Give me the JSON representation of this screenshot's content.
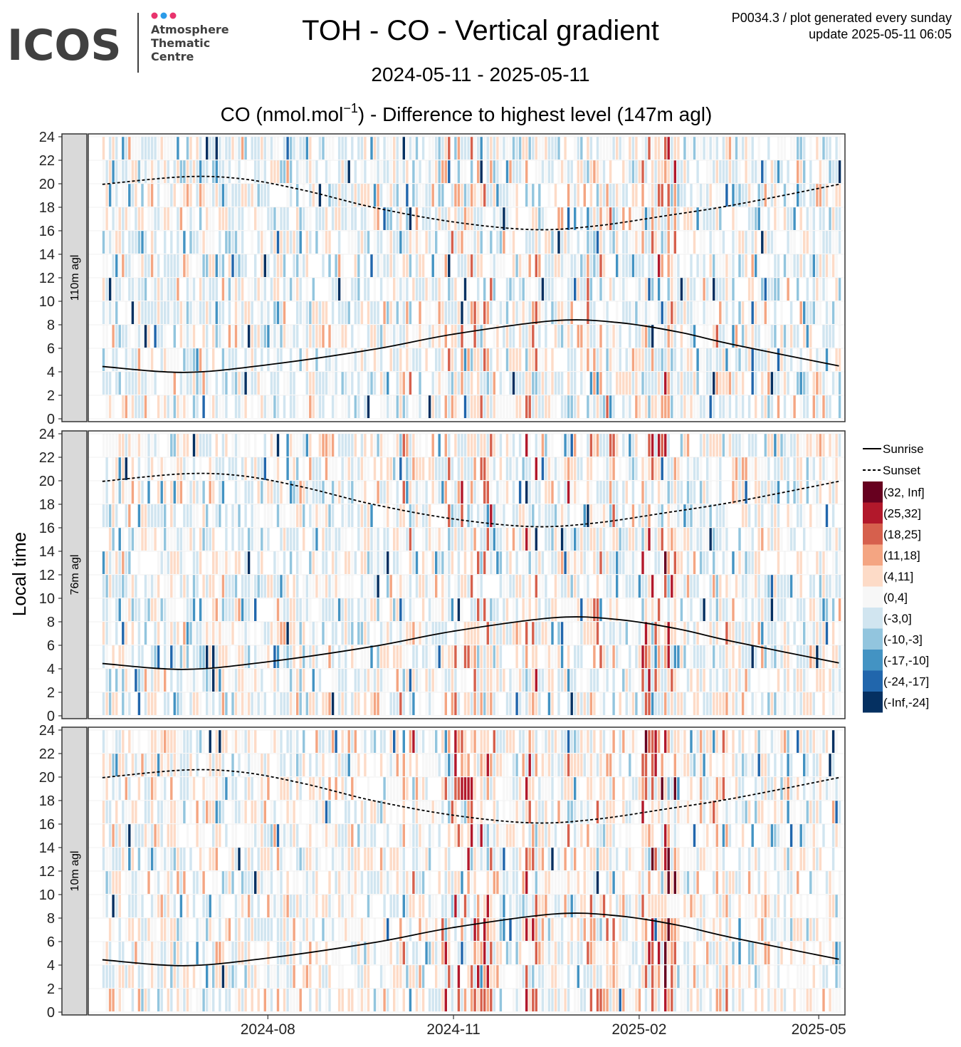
{
  "logo": {
    "wordmark": "ICOS",
    "line1": "Atmosphere",
    "line2": "Thematic",
    "line3": "Centre",
    "dot_colors": [
      "#e8336d",
      "#2b9be8",
      "#e8336d"
    ],
    "wordmark_color": "#404040"
  },
  "header": {
    "title": "TOH - CO - Vertical gradient",
    "period": "2024-05-11 - 2025-05-11",
    "corner_line1": "P0034.3 / plot generated every sunday",
    "corner_line2": "update  2025-05-11 06:05"
  },
  "chart_data": {
    "type": "heatmap",
    "title": "TOH - CO - Vertical gradient",
    "subtitle": "2024-05-11 - 2025-05-11",
    "heading_prefix": "CO (nmol.mol",
    "heading_sup": "−1",
    "heading_suffix": ") - Difference to highest level (147m agl)",
    "ylabel": "Local time",
    "x_range": [
      "2024-05-11",
      "2025-05-11"
    ],
    "x_ticks": [
      {
        "date": "2024-08-01",
        "label": "2024-08"
      },
      {
        "date": "2024-11-01",
        "label": "2024-11"
      },
      {
        "date": "2025-02-01",
        "label": "2025-02"
      },
      {
        "date": "2025-05-01",
        "label": "2025-05"
      }
    ],
    "y_range": [
      0,
      24
    ],
    "y_ticks": [
      0,
      2,
      4,
      6,
      8,
      10,
      12,
      14,
      16,
      18,
      20,
      22,
      24
    ],
    "grid": true,
    "legend_position": "right",
    "panels": [
      {
        "label": "110m agl",
        "intensity": 0.55
      },
      {
        "label": "76m agl",
        "intensity": 0.8
      },
      {
        "label": "10m agl",
        "intensity": 1.0
      }
    ],
    "lines": [
      {
        "name": "Sunrise",
        "style": "solid",
        "points": [
          [
            "2024-05-11",
            4.45
          ],
          [
            "2024-06-21",
            3.95
          ],
          [
            "2024-08-01",
            4.6
          ],
          [
            "2024-09-22",
            5.9
          ],
          [
            "2024-11-01",
            7.2
          ],
          [
            "2024-12-21",
            8.35
          ],
          [
            "2025-01-21",
            8.2
          ],
          [
            "2025-02-20",
            7.4
          ],
          [
            "2025-03-20",
            6.3
          ],
          [
            "2025-05-11",
            4.5
          ]
        ]
      },
      {
        "name": "Sunset",
        "style": "dashed",
        "points": [
          [
            "2024-05-11",
            19.95
          ],
          [
            "2024-06-21",
            20.6
          ],
          [
            "2024-07-20",
            20.4
          ],
          [
            "2024-08-20",
            19.4
          ],
          [
            "2024-09-22",
            18.0
          ],
          [
            "2024-11-01",
            16.75
          ],
          [
            "2024-12-10",
            16.1
          ],
          [
            "2025-01-10",
            16.4
          ],
          [
            "2025-02-15",
            17.3
          ],
          [
            "2025-03-20",
            18.2
          ],
          [
            "2025-05-11",
            19.95
          ]
        ]
      }
    ],
    "legend_bins": [
      {
        "label": "(32, Inf]",
        "color": "#67001f"
      },
      {
        "label": "(25,32]",
        "color": "#b2182b"
      },
      {
        "label": "(18,25]",
        "color": "#d6604d"
      },
      {
        "label": "(11,18]",
        "color": "#f4a582"
      },
      {
        "label": "(4,11]",
        "color": "#fddbc7"
      },
      {
        "label": "(0,4]",
        "color": "#f7f7f7"
      },
      {
        "label": "(-3,0]",
        "color": "#d1e5f0"
      },
      {
        "label": "(-10,-3]",
        "color": "#92c5de"
      },
      {
        "label": "(-17,-10]",
        "color": "#4393c3"
      },
      {
        "label": "(-24,-17]",
        "color": "#2166ac"
      },
      {
        "label": "(-Inf,-24]",
        "color": "#053061"
      }
    ],
    "high_episodes": [
      {
        "start": "2024-10-05",
        "end": "2024-10-12",
        "strength": 0.45
      },
      {
        "start": "2024-10-25",
        "end": "2024-11-22",
        "strength": 0.6
      },
      {
        "start": "2024-12-06",
        "end": "2024-12-12",
        "strength": 0.8
      },
      {
        "start": "2024-12-26",
        "end": "2024-12-28",
        "strength": 0.7
      },
      {
        "start": "2025-01-05",
        "end": "2025-01-20",
        "strength": 0.45
      },
      {
        "start": "2025-02-01",
        "end": "2025-02-19",
        "strength": 0.95
      },
      {
        "start": "2025-03-08",
        "end": "2025-03-18",
        "strength": 0.35
      }
    ]
  }
}
